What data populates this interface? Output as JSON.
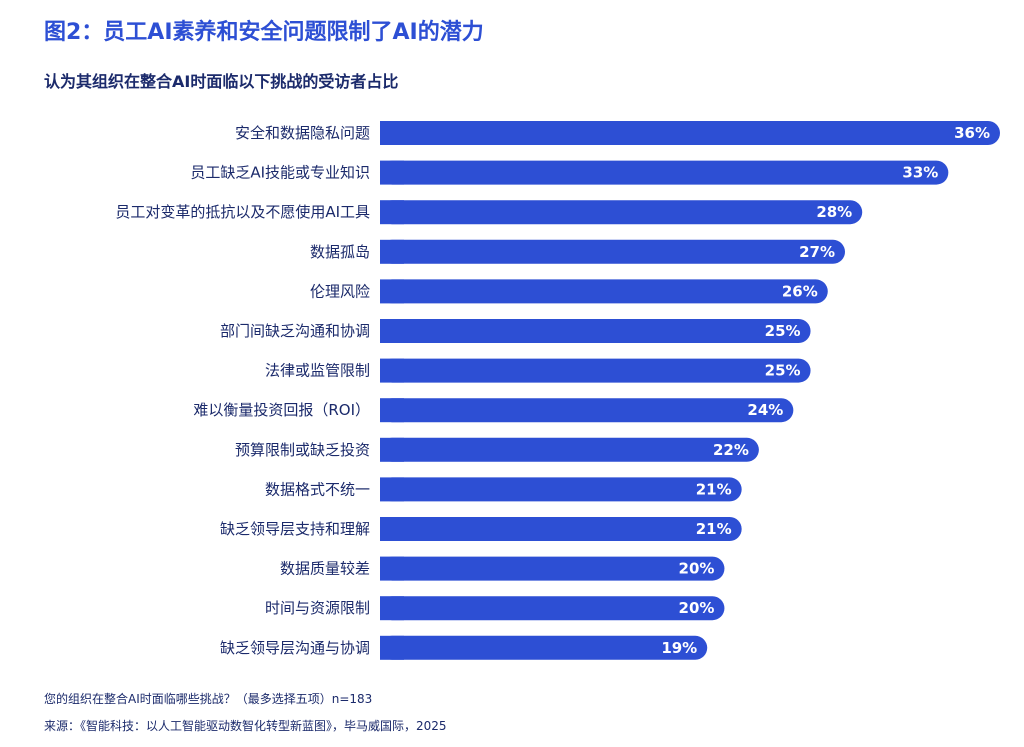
{
  "chart_data": {
    "type": "bar",
    "orientation": "horizontal",
    "title": "图2：员工AI素养和安全问题限制了AI的潜力",
    "subtitle": "认为其组织在整合AI时面临以下挑战的受访者占比",
    "categories": [
      "安全和数据隐私问题",
      "员工缺乏AI技能或专业知识",
      "员工对变革的抵抗以及不愿使用AI工具",
      "数据孤岛",
      "伦理风险",
      "部门间缺乏沟通和协调",
      "法律或监管限制",
      "难以衡量投资回报（ROI）",
      "预算限制或缺乏投资",
      "数据格式不统一",
      "缺乏领导层支持和理解",
      "数据质量较差",
      "时间与资源限制",
      "缺乏领导层沟通与协调"
    ],
    "values": [
      36,
      33,
      28,
      27,
      26,
      25,
      25,
      24,
      22,
      21,
      21,
      20,
      20,
      19
    ],
    "value_labels": [
      "36%",
      "33%",
      "28%",
      "27%",
      "26%",
      "25%",
      "25%",
      "24%",
      "22%",
      "21%",
      "21%",
      "20%",
      "20%",
      "19%"
    ],
    "xlim": [
      0,
      36
    ],
    "bar_color": "#2d4fd4",
    "label_color": "#1b2a6b",
    "grid": false,
    "legend": "none"
  },
  "footnote": "您的组织在整合AI时面临哪些挑战？（最多选择五项）n=183",
  "source": "来源：《智能科技：以人工智能驱动数智化转型新蓝图》，毕马威国际，2025"
}
